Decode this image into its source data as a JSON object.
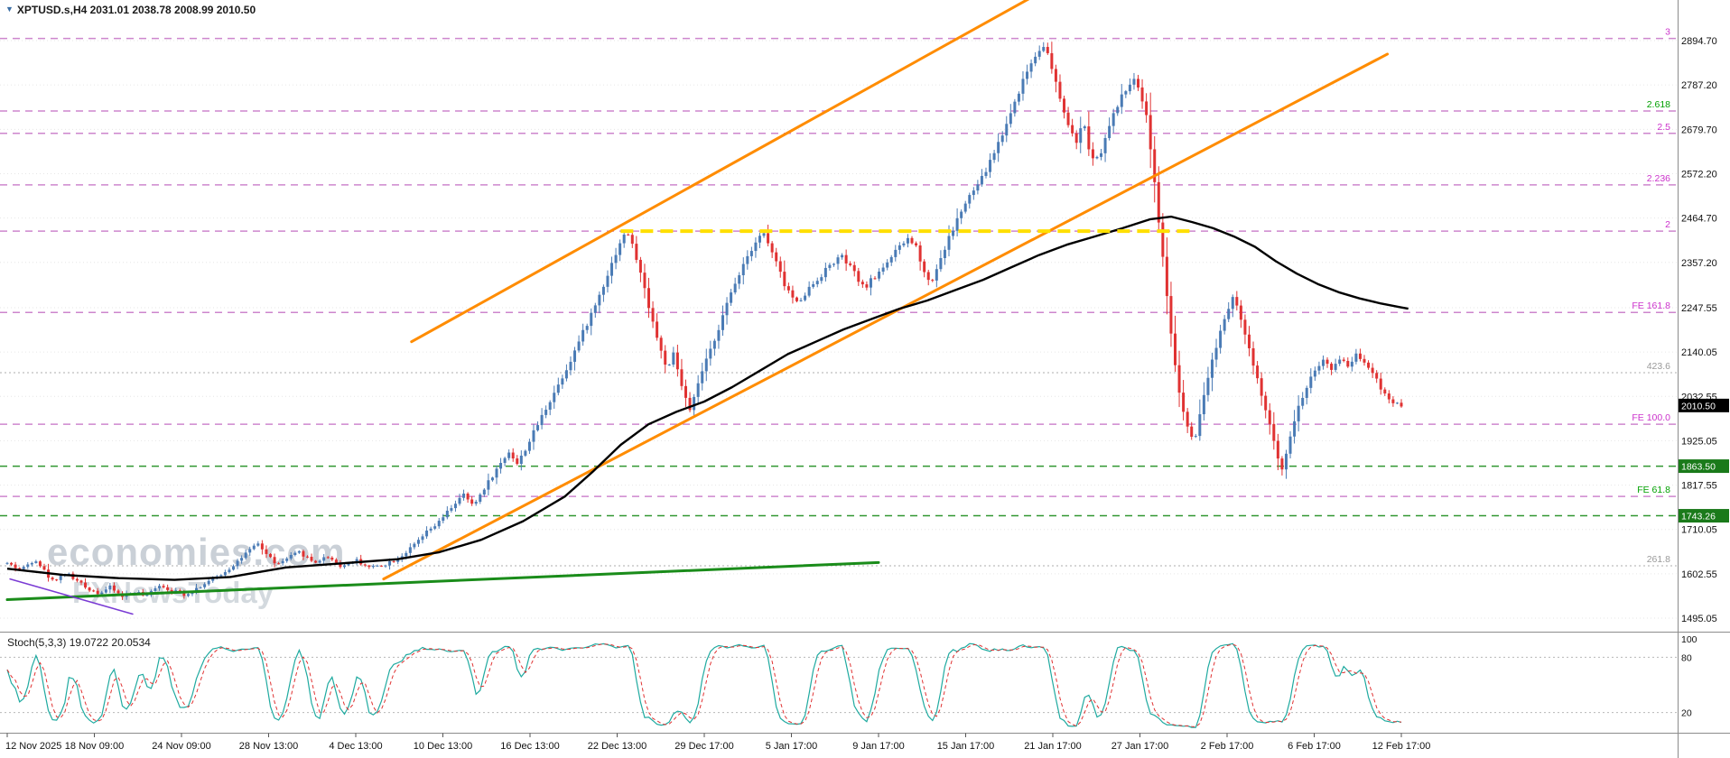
{
  "window": {
    "title": "XPTUSD.s,H4 2031.01 2038.78 2008.99 2010.50",
    "symbol": "XPTUSD.s",
    "timeframe": "H4",
    "ohlc": {
      "open": "2031.01",
      "high": "2038.78",
      "low": "2008.99",
      "close": "2010.50"
    }
  },
  "watermark": {
    "line1": "economies.com",
    "line2": "FXNewsToday"
  },
  "colors": {
    "bull": "#4a7bb5",
    "bear": "#e03232",
    "ma": "#000000",
    "channel": "#ff8c00",
    "support": "#1a8c1a",
    "minor_trend": "#7a3bd4",
    "fib_line": "#c879c8",
    "fib_label_magenta": "#cc33cc",
    "fib_label_green": "#00a000",
    "gray_level": "#9a9a9a",
    "green_level": "#1a8c1a",
    "yellow": "#ffdf00",
    "grid": "#e6e6e6",
    "axis_line": "#8c8c8c",
    "axis_text": "#111111",
    "stoch_k": "#1faaa0",
    "stoch_d": "#e03232",
    "tag_current_bg": "#000000",
    "tag_current_fg": "#ffffff",
    "tag_green_bg": "#1a7a1a",
    "tag_green_fg": "#ffffff"
  },
  "chart_data": {
    "type": "candlestick+stochastic",
    "symbol": "XPTUSD",
    "timeframe": "H4",
    "title": "XPTUSD.s,H4",
    "current_price": 2010.5,
    "current_price_label": "2010.50",
    "price_range_visible": [
      1462,
      2993
    ],
    "y_axis_labels": [
      "2894.70",
      "2787.20",
      "2679.70",
      "2572.20",
      "2464.70",
      "2357.20",
      "2247.55",
      "2140.05",
      "2032.55",
      "1925.05",
      "1817.55",
      "1710.05",
      "1602.55",
      "1495.05"
    ],
    "x_labels": [
      "12 Nov 2025",
      "18 Nov 09:00",
      "24 Nov 09:00",
      "28 Nov 13:00",
      "4 Dec 13:00",
      "10 Dec 13:00",
      "16 Dec 13:00",
      "22 Dec 13:00",
      "29 Dec 17:00",
      "5 Jan 17:00",
      "9 Jan 17:00",
      "15 Jan 17:00",
      "21 Jan 17:00",
      "27 Jan 17:00",
      "2 Feb 17:00",
      "6 Feb 17:00",
      "12 Feb 17:00"
    ],
    "x_labels_evenly_spaced": true,
    "candle_count": 340,
    "fib_levels": [
      {
        "label": "3",
        "price": 2900,
        "style": "magenta"
      },
      {
        "label": "2.618",
        "price": 2724,
        "style": "green"
      },
      {
        "label": "2.5",
        "price": 2670,
        "style": "magenta"
      },
      {
        "label": "2.236",
        "price": 2545,
        "style": "magenta"
      },
      {
        "label": "2",
        "price": 2433,
        "style": "magenta"
      },
      {
        "label": "FE 161.8",
        "price": 2236,
        "style": "magenta"
      },
      {
        "label": "FE 100.0",
        "price": 1965,
        "style": "magenta"
      },
      {
        "label": "FE 61.8",
        "price": 1790,
        "style": "green"
      }
    ],
    "gray_levels": [
      {
        "label": "423.6",
        "price": 2090
      },
      {
        "label": "261.8",
        "price": 1622
      }
    ],
    "green_levels": [
      {
        "label": "1863.50",
        "price": 1863.5
      },
      {
        "label": "1743.26",
        "price": 1743.26
      }
    ],
    "yellow_line": {
      "price": 2433,
      "f1": 0.44,
      "f2": 0.85
    },
    "trendlines": [
      {
        "name": "orange-channel-lower",
        "colorKey": "channel",
        "width": 3,
        "p1": [
          0.27,
          1590
        ],
        "p2": [
          0.99,
          2862
        ]
      },
      {
        "name": "orange-channel-upper",
        "colorKey": "channel",
        "width": 3,
        "p1": [
          0.29,
          2165
        ],
        "p2": [
          0.735,
          3000
        ]
      },
      {
        "name": "green-support-line",
        "colorKey": "support",
        "width": 3,
        "p1": [
          0.0,
          1540
        ],
        "p2": [
          0.625,
          1630
        ]
      },
      {
        "name": "purple-minor-line",
        "colorKey": "minor_trend",
        "width": 1.5,
        "p1": [
          0.002,
          1590
        ],
        "p2": [
          0.09,
          1505
        ]
      }
    ],
    "price_path_anchors": [
      [
        0.0,
        1628
      ],
      [
        0.01,
        1612
      ],
      [
        0.02,
        1640
      ],
      [
        0.032,
        1585
      ],
      [
        0.042,
        1605
      ],
      [
        0.056,
        1570
      ],
      [
        0.066,
        1556
      ],
      [
        0.074,
        1570
      ],
      [
        0.082,
        1548
      ],
      [
        0.092,
        1560
      ],
      [
        0.1,
        1546
      ],
      [
        0.108,
        1578
      ],
      [
        0.118,
        1562
      ],
      [
        0.128,
        1552
      ],
      [
        0.138,
        1572
      ],
      [
        0.148,
        1590
      ],
      [
        0.158,
        1612
      ],
      [
        0.17,
        1648
      ],
      [
        0.18,
        1675
      ],
      [
        0.186,
        1650
      ],
      [
        0.194,
        1624
      ],
      [
        0.202,
        1642
      ],
      [
        0.21,
        1655
      ],
      [
        0.22,
        1630
      ],
      [
        0.23,
        1645
      ],
      [
        0.24,
        1620
      ],
      [
        0.25,
        1636
      ],
      [
        0.26,
        1618
      ],
      [
        0.27,
        1625
      ],
      [
        0.28,
        1640
      ],
      [
        0.29,
        1665
      ],
      [
        0.3,
        1700
      ],
      [
        0.31,
        1728
      ],
      [
        0.32,
        1770
      ],
      [
        0.328,
        1795
      ],
      [
        0.334,
        1765
      ],
      [
        0.342,
        1810
      ],
      [
        0.352,
        1860
      ],
      [
        0.36,
        1900
      ],
      [
        0.366,
        1868
      ],
      [
        0.374,
        1920
      ],
      [
        0.382,
        1975
      ],
      [
        0.392,
        2040
      ],
      [
        0.402,
        2105
      ],
      [
        0.412,
        2180
      ],
      [
        0.422,
        2255
      ],
      [
        0.432,
        2340
      ],
      [
        0.44,
        2410
      ],
      [
        0.445,
        2432
      ],
      [
        0.452,
        2360
      ],
      [
        0.46,
        2255
      ],
      [
        0.468,
        2150
      ],
      [
        0.474,
        2095
      ],
      [
        0.478,
        2135
      ],
      [
        0.484,
        2055
      ],
      [
        0.49,
        1992
      ],
      [
        0.496,
        2070
      ],
      [
        0.504,
        2140
      ],
      [
        0.512,
        2215
      ],
      [
        0.52,
        2290
      ],
      [
        0.528,
        2355
      ],
      [
        0.536,
        2405
      ],
      [
        0.542,
        2432
      ],
      [
        0.55,
        2370
      ],
      [
        0.558,
        2300
      ],
      [
        0.566,
        2258
      ],
      [
        0.574,
        2290
      ],
      [
        0.582,
        2320
      ],
      [
        0.59,
        2350
      ],
      [
        0.598,
        2372
      ],
      [
        0.606,
        2340
      ],
      [
        0.614,
        2295
      ],
      [
        0.622,
        2320
      ],
      [
        0.63,
        2355
      ],
      [
        0.638,
        2385
      ],
      [
        0.646,
        2415
      ],
      [
        0.652,
        2395
      ],
      [
        0.658,
        2335
      ],
      [
        0.662,
        2302
      ],
      [
        0.668,
        2355
      ],
      [
        0.676,
        2420
      ],
      [
        0.684,
        2480
      ],
      [
        0.692,
        2525
      ],
      [
        0.7,
        2565
      ],
      [
        0.708,
        2625
      ],
      [
        0.716,
        2685
      ],
      [
        0.724,
        2760
      ],
      [
        0.732,
        2825
      ],
      [
        0.74,
        2875
      ],
      [
        0.744,
        2888
      ],
      [
        0.75,
        2815
      ],
      [
        0.756,
        2745
      ],
      [
        0.762,
        2680
      ],
      [
        0.766,
        2645
      ],
      [
        0.772,
        2695
      ],
      [
        0.776,
        2628
      ],
      [
        0.782,
        2605
      ],
      [
        0.788,
        2660
      ],
      [
        0.794,
        2718
      ],
      [
        0.8,
        2762
      ],
      [
        0.806,
        2800
      ],
      [
        0.812,
        2785
      ],
      [
        0.818,
        2700
      ],
      [
        0.824,
        2520
      ],
      [
        0.83,
        2330
      ],
      [
        0.836,
        2150
      ],
      [
        0.842,
        2010
      ],
      [
        0.848,
        1940
      ],
      [
        0.852,
        1922
      ],
      [
        0.858,
        2030
      ],
      [
        0.864,
        2115
      ],
      [
        0.87,
        2190
      ],
      [
        0.876,
        2250
      ],
      [
        0.88,
        2285
      ],
      [
        0.886,
        2205
      ],
      [
        0.892,
        2130
      ],
      [
        0.898,
        2055
      ],
      [
        0.904,
        1985
      ],
      [
        0.91,
        1900
      ],
      [
        0.914,
        1852
      ],
      [
        0.92,
        1935
      ],
      [
        0.926,
        2005
      ],
      [
        0.932,
        2055
      ],
      [
        0.938,
        2098
      ],
      [
        0.944,
        2120
      ],
      [
        0.95,
        2092
      ],
      [
        0.956,
        2128
      ],
      [
        0.962,
        2105
      ],
      [
        0.968,
        2138
      ],
      [
        0.974,
        2115
      ],
      [
        0.98,
        2090
      ],
      [
        0.986,
        2048
      ],
      [
        0.992,
        2022
      ],
      [
        1.0,
        2012
      ]
    ],
    "ma_anchors": [
      [
        0,
        1615
      ],
      [
        0.04,
        1600
      ],
      [
        0.08,
        1592
      ],
      [
        0.12,
        1588
      ],
      [
        0.16,
        1595
      ],
      [
        0.2,
        1618
      ],
      [
        0.24,
        1628
      ],
      [
        0.28,
        1638
      ],
      [
        0.31,
        1655
      ],
      [
        0.34,
        1685
      ],
      [
        0.37,
        1730
      ],
      [
        0.4,
        1790
      ],
      [
        0.42,
        1850
      ],
      [
        0.44,
        1915
      ],
      [
        0.46,
        1965
      ],
      [
        0.48,
        1995
      ],
      [
        0.5,
        2020
      ],
      [
        0.52,
        2055
      ],
      [
        0.54,
        2095
      ],
      [
        0.56,
        2135
      ],
      [
        0.58,
        2165
      ],
      [
        0.6,
        2195
      ],
      [
        0.62,
        2220
      ],
      [
        0.64,
        2245
      ],
      [
        0.66,
        2265
      ],
      [
        0.68,
        2290
      ],
      [
        0.7,
        2315
      ],
      [
        0.72,
        2345
      ],
      [
        0.74,
        2375
      ],
      [
        0.76,
        2400
      ],
      [
        0.78,
        2420
      ],
      [
        0.8,
        2440
      ],
      [
        0.82,
        2462
      ],
      [
        0.835,
        2468
      ],
      [
        0.85,
        2455
      ],
      [
        0.865,
        2440
      ],
      [
        0.88,
        2420
      ],
      [
        0.895,
        2395
      ],
      [
        0.91,
        2360
      ],
      [
        0.925,
        2330
      ],
      [
        0.94,
        2305
      ],
      [
        0.955,
        2285
      ],
      [
        0.97,
        2270
      ],
      [
        0.985,
        2258
      ],
      [
        1.0,
        2248
      ],
      [
        1.005,
        2245
      ]
    ],
    "stochastic": {
      "label": "Stoch(5,3,3)",
      "label_full": "Stoch(5,3,3) 19.0722 20.0534",
      "k_value": "19.0722",
      "d_value": "20.0534",
      "k_period": 5,
      "k_smooth": 3,
      "d_period": 3,
      "levels": [
        "100",
        "80",
        "20"
      ],
      "level_lines": [
        80,
        20
      ]
    }
  }
}
